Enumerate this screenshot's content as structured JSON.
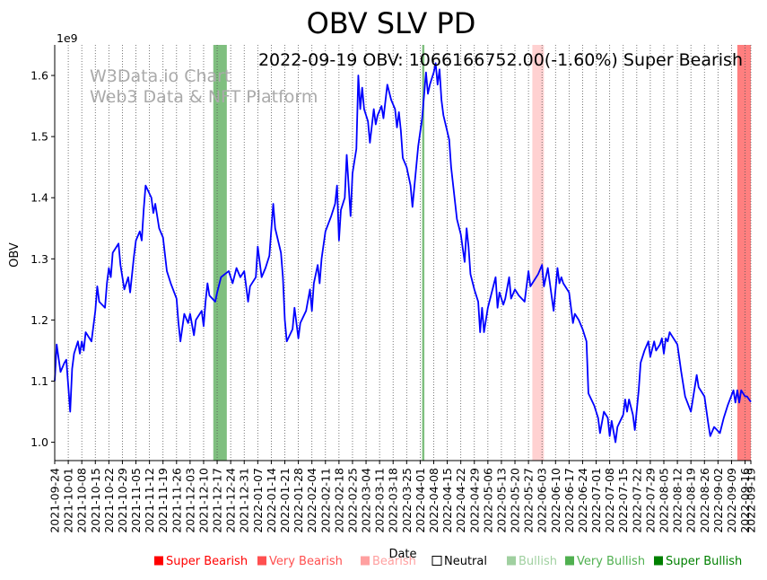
{
  "chart_data": {
    "type": "line",
    "title": "OBV SLV PD",
    "xlabel": "Date",
    "ylabel": "OBV",
    "y_scale_label": "1e9",
    "annotation": "2022-09-19 OBV: 1066166752.00(-1.60%) Super Bearish",
    "watermark": [
      "W3Data.io Chart",
      "Web3 Data & NFT Platform"
    ],
    "x_range": [
      0,
      360
    ],
    "ylim": [
      0.97,
      1.65
    ],
    "y_ticks": [
      1.0,
      1.1,
      1.2,
      1.3,
      1.4,
      1.5,
      1.6
    ],
    "y_tick_labels": [
      "1.0",
      "1.1",
      "1.2",
      "1.3",
      "1.4",
      "1.5",
      "1.6"
    ],
    "x_ticks": [
      {
        "label": "2021-09-24",
        "day": 0
      },
      {
        "label": "2021-10-01",
        "day": 7
      },
      {
        "label": "2021-10-08",
        "day": 14
      },
      {
        "label": "2021-10-15",
        "day": 21
      },
      {
        "label": "2021-10-22",
        "day": 28
      },
      {
        "label": "2021-10-29",
        "day": 35
      },
      {
        "label": "2021-11-05",
        "day": 42
      },
      {
        "label": "2021-11-12",
        "day": 49
      },
      {
        "label": "2021-11-19",
        "day": 56
      },
      {
        "label": "2021-11-26",
        "day": 63
      },
      {
        "label": "2021-12-03",
        "day": 70
      },
      {
        "label": "2021-12-10",
        "day": 77
      },
      {
        "label": "2021-12-17",
        "day": 84
      },
      {
        "label": "2021-12-24",
        "day": 91
      },
      {
        "label": "2021-12-31",
        "day": 98
      },
      {
        "label": "2022-01-07",
        "day": 105
      },
      {
        "label": "2022-01-14",
        "day": 112
      },
      {
        "label": "2022-01-21",
        "day": 119
      },
      {
        "label": "2022-01-28",
        "day": 126
      },
      {
        "label": "2022-02-04",
        "day": 133
      },
      {
        "label": "2022-02-11",
        "day": 140
      },
      {
        "label": "2022-02-18",
        "day": 147
      },
      {
        "label": "2022-02-25",
        "day": 154
      },
      {
        "label": "2022-03-04",
        "day": 161
      },
      {
        "label": "2022-03-11",
        "day": 168
      },
      {
        "label": "2022-03-18",
        "day": 175
      },
      {
        "label": "2022-03-25",
        "day": 182
      },
      {
        "label": "2022-04-01",
        "day": 189
      },
      {
        "label": "2022-04-08",
        "day": 196
      },
      {
        "label": "2022-04-15",
        "day": 203
      },
      {
        "label": "2022-04-22",
        "day": 210
      },
      {
        "label": "2022-04-29",
        "day": 217
      },
      {
        "label": "2022-05-06",
        "day": 224
      },
      {
        "label": "2022-05-13",
        "day": 231
      },
      {
        "label": "2022-05-20",
        "day": 238
      },
      {
        "label": "2022-05-27",
        "day": 245
      },
      {
        "label": "2022-06-03",
        "day": 252
      },
      {
        "label": "2022-06-10",
        "day": 259
      },
      {
        "label": "2022-06-17",
        "day": 266
      },
      {
        "label": "2022-06-24",
        "day": 273
      },
      {
        "label": "2022-07-01",
        "day": 280
      },
      {
        "label": "2022-07-08",
        "day": 287
      },
      {
        "label": "2022-07-15",
        "day": 294
      },
      {
        "label": "2022-07-22",
        "day": 301
      },
      {
        "label": "2022-07-29",
        "day": 308
      },
      {
        "label": "2022-08-05",
        "day": 315
      },
      {
        "label": "2022-08-12",
        "day": 322
      },
      {
        "label": "2022-08-19",
        "day": 329
      },
      {
        "label": "2022-08-26",
        "day": 336
      },
      {
        "label": "2022-09-02",
        "day": 343
      },
      {
        "label": "2022-09-09",
        "day": 350
      },
      {
        "label": "2022-09-16",
        "day": 357
      },
      {
        "label": "2022-09-19",
        "day": 360
      }
    ],
    "signal_bands": [
      {
        "start_day": 82,
        "end_day": 89,
        "signal": "Very Bullish",
        "color": "#008000",
        "opacity": 0.5
      },
      {
        "start_day": 190,
        "end_day": 191,
        "signal": "Very Bullish",
        "color": "#008000",
        "opacity": 0.5
      },
      {
        "start_day": 247,
        "end_day": 253,
        "signal": "Bearish",
        "color": "#ff0000",
        "opacity": 0.18
      },
      {
        "start_day": 353,
        "end_day": 360,
        "signal": "Super Bearish",
        "color": "#ff0000",
        "opacity": 0.5
      }
    ],
    "series": [
      {
        "name": "OBV",
        "color": "#0000ff",
        "points": [
          [
            0,
            1.1
          ],
          [
            1,
            1.16
          ],
          [
            3,
            1.115
          ],
          [
            5,
            1.13
          ],
          [
            6,
            1.135
          ],
          [
            8,
            1.05
          ],
          [
            9,
            1.12
          ],
          [
            10,
            1.145
          ],
          [
            12,
            1.165
          ],
          [
            13,
            1.145
          ],
          [
            14,
            1.165
          ],
          [
            15,
            1.15
          ],
          [
            16,
            1.18
          ],
          [
            19,
            1.165
          ],
          [
            21,
            1.215
          ],
          [
            22,
            1.255
          ],
          [
            23,
            1.23
          ],
          [
            26,
            1.22
          ],
          [
            27,
            1.26
          ],
          [
            28,
            1.285
          ],
          [
            29,
            1.27
          ],
          [
            30,
            1.31
          ],
          [
            33,
            1.325
          ],
          [
            34,
            1.29
          ],
          [
            36,
            1.25
          ],
          [
            38,
            1.27
          ],
          [
            39,
            1.245
          ],
          [
            41,
            1.305
          ],
          [
            42,
            1.33
          ],
          [
            44,
            1.345
          ],
          [
            45,
            1.33
          ],
          [
            46,
            1.38
          ],
          [
            47,
            1.42
          ],
          [
            50,
            1.4
          ],
          [
            51,
            1.375
          ],
          [
            52,
            1.39
          ],
          [
            53,
            1.37
          ],
          [
            54,
            1.35
          ],
          [
            56,
            1.335
          ],
          [
            58,
            1.28
          ],
          [
            60,
            1.26
          ],
          [
            63,
            1.235
          ],
          [
            64,
            1.195
          ],
          [
            65,
            1.165
          ],
          [
            67,
            1.21
          ],
          [
            69,
            1.195
          ],
          [
            70,
            1.21
          ],
          [
            72,
            1.175
          ],
          [
            73,
            1.2
          ],
          [
            76,
            1.215
          ],
          [
            77,
            1.19
          ],
          [
            78,
            1.23
          ],
          [
            79,
            1.26
          ],
          [
            80,
            1.24
          ],
          [
            83,
            1.23
          ],
          [
            84,
            1.245
          ],
          [
            86,
            1.27
          ],
          [
            88,
            1.275
          ],
          [
            90,
            1.28
          ],
          [
            92,
            1.26
          ],
          [
            94,
            1.285
          ],
          [
            96,
            1.27
          ],
          [
            98,
            1.28
          ],
          [
            100,
            1.23
          ],
          [
            101,
            1.255
          ],
          [
            104,
            1.27
          ],
          [
            105,
            1.32
          ],
          [
            107,
            1.27
          ],
          [
            109,
            1.285
          ],
          [
            111,
            1.305
          ],
          [
            113,
            1.39
          ],
          [
            114,
            1.35
          ],
          [
            117,
            1.31
          ],
          [
            118,
            1.27
          ],
          [
            119,
            1.2
          ],
          [
            120,
            1.165
          ],
          [
            123,
            1.185
          ],
          [
            124,
            1.22
          ],
          [
            126,
            1.17
          ],
          [
            127,
            1.195
          ],
          [
            130,
            1.215
          ],
          [
            132,
            1.25
          ],
          [
            133,
            1.215
          ],
          [
            134,
            1.26
          ],
          [
            136,
            1.29
          ],
          [
            137,
            1.26
          ],
          [
            138,
            1.3
          ],
          [
            140,
            1.345
          ],
          [
            143,
            1.37
          ],
          [
            145,
            1.39
          ],
          [
            146,
            1.42
          ],
          [
            147,
            1.33
          ],
          [
            148,
            1.38
          ],
          [
            150,
            1.4
          ],
          [
            151,
            1.47
          ],
          [
            153,
            1.37
          ],
          [
            154,
            1.44
          ],
          [
            156,
            1.48
          ],
          [
            157,
            1.6
          ],
          [
            158,
            1.545
          ],
          [
            159,
            1.58
          ],
          [
            160,
            1.545
          ],
          [
            162,
            1.525
          ],
          [
            163,
            1.49
          ],
          [
            165,
            1.545
          ],
          [
            166,
            1.52
          ],
          [
            167,
            1.535
          ],
          [
            169,
            1.55
          ],
          [
            170,
            1.53
          ],
          [
            172,
            1.585
          ],
          [
            174,
            1.56
          ],
          [
            176,
            1.545
          ],
          [
            177,
            1.515
          ],
          [
            178,
            1.54
          ],
          [
            179,
            1.51
          ],
          [
            180,
            1.465
          ],
          [
            182,
            1.45
          ],
          [
            184,
            1.42
          ],
          [
            185,
            1.385
          ],
          [
            188,
            1.485
          ],
          [
            190,
            1.53
          ],
          [
            192,
            1.605
          ],
          [
            193,
            1.57
          ],
          [
            194,
            1.585
          ],
          [
            196,
            1.605
          ],
          [
            197,
            1.62
          ],
          [
            198,
            1.585
          ],
          [
            199,
            1.61
          ],
          [
            200,
            1.56
          ],
          [
            201,
            1.535
          ],
          [
            204,
            1.495
          ],
          [
            205,
            1.45
          ],
          [
            208,
            1.365
          ],
          [
            210,
            1.34
          ],
          [
            212,
            1.295
          ],
          [
            213,
            1.35
          ],
          [
            214,
            1.32
          ],
          [
            215,
            1.275
          ],
          [
            217,
            1.25
          ],
          [
            219,
            1.23
          ],
          [
            220,
            1.18
          ],
          [
            221,
            1.22
          ],
          [
            222,
            1.18
          ],
          [
            224,
            1.22
          ],
          [
            226,
            1.245
          ],
          [
            228,
            1.27
          ],
          [
            229,
            1.22
          ],
          [
            230,
            1.245
          ],
          [
            232,
            1.225
          ],
          [
            233,
            1.235
          ],
          [
            235,
            1.27
          ],
          [
            236,
            1.235
          ],
          [
            238,
            1.25
          ],
          [
            240,
            1.24
          ],
          [
            243,
            1.23
          ],
          [
            245,
            1.28
          ],
          [
            246,
            1.255
          ],
          [
            248,
            1.265
          ],
          [
            250,
            1.275
          ],
          [
            252,
            1.29
          ],
          [
            253,
            1.255
          ],
          [
            255,
            1.285
          ],
          [
            258,
            1.215
          ],
          [
            260,
            1.285
          ],
          [
            261,
            1.26
          ],
          [
            262,
            1.27
          ],
          [
            263,
            1.26
          ],
          [
            266,
            1.245
          ],
          [
            268,
            1.195
          ],
          [
            269,
            1.21
          ],
          [
            271,
            1.2
          ],
          [
            273,
            1.185
          ],
          [
            275,
            1.165
          ],
          [
            276,
            1.08
          ],
          [
            279,
            1.06
          ],
          [
            281,
            1.04
          ],
          [
            282,
            1.015
          ],
          [
            284,
            1.05
          ],
          [
            286,
            1.04
          ],
          [
            287,
            1.01
          ],
          [
            288,
            1.035
          ],
          [
            290,
            1.0
          ],
          [
            291,
            1.025
          ],
          [
            294,
            1.045
          ],
          [
            295,
            1.07
          ],
          [
            296,
            1.05
          ],
          [
            297,
            1.07
          ],
          [
            299,
            1.045
          ],
          [
            300,
            1.02
          ],
          [
            302,
            1.085
          ],
          [
            303,
            1.13
          ],
          [
            305,
            1.15
          ],
          [
            307,
            1.165
          ],
          [
            308,
            1.14
          ],
          [
            310,
            1.165
          ],
          [
            311,
            1.15
          ],
          [
            313,
            1.16
          ],
          [
            314,
            1.17
          ],
          [
            315,
            1.145
          ],
          [
            316,
            1.17
          ],
          [
            317,
            1.165
          ],
          [
            318,
            1.18
          ],
          [
            319,
            1.175
          ],
          [
            322,
            1.16
          ],
          [
            324,
            1.115
          ],
          [
            326,
            1.075
          ],
          [
            329,
            1.05
          ],
          [
            332,
            1.11
          ],
          [
            333,
            1.09
          ],
          [
            336,
            1.075
          ],
          [
            338,
            1.03
          ],
          [
            339,
            1.01
          ],
          [
            341,
            1.025
          ],
          [
            344,
            1.015
          ],
          [
            346,
            1.04
          ],
          [
            348,
            1.06
          ],
          [
            351,
            1.085
          ],
          [
            352,
            1.065
          ],
          [
            353,
            1.085
          ],
          [
            354,
            1.065
          ],
          [
            355,
            1.085
          ],
          [
            357,
            1.075
          ],
          [
            358,
            1.075
          ],
          [
            360,
            1.066
          ]
        ]
      }
    ],
    "legend": [
      {
        "label": "Super Bearish",
        "color": "#ff0000"
      },
      {
        "label": "Very Bearish",
        "color": "#ff5050"
      },
      {
        "label": "Bearish",
        "color": "#ffa0a0"
      },
      {
        "label": "Neutral",
        "color": "#000000"
      },
      {
        "label": "Bullish",
        "color": "#a0d0a0"
      },
      {
        "label": "Very Bullish",
        "color": "#50b050"
      },
      {
        "label": "Super Bullish",
        "color": "#008000"
      }
    ]
  }
}
